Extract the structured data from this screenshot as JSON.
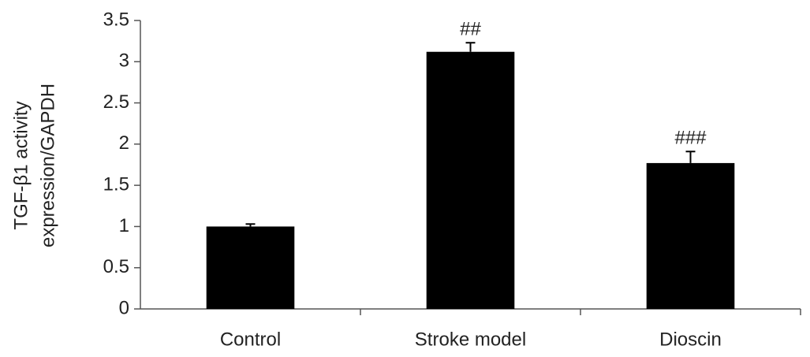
{
  "chart_data": {
    "type": "bar",
    "ylabel": [
      "TGF-β1 activity",
      "expression/GAPDH"
    ],
    "categories": [
      "Control",
      "Stroke model",
      "Dioscin"
    ],
    "values": [
      1.0,
      3.12,
      1.77
    ],
    "errors": [
      0.03,
      0.11,
      0.14
    ],
    "annotations": [
      null,
      "##",
      "###"
    ],
    "color": "#000000",
    "ylim": [
      0,
      3.5
    ],
    "yticks": [
      0,
      0.5,
      1,
      1.5,
      2,
      2.5,
      3,
      3.5
    ],
    "grid": false
  }
}
